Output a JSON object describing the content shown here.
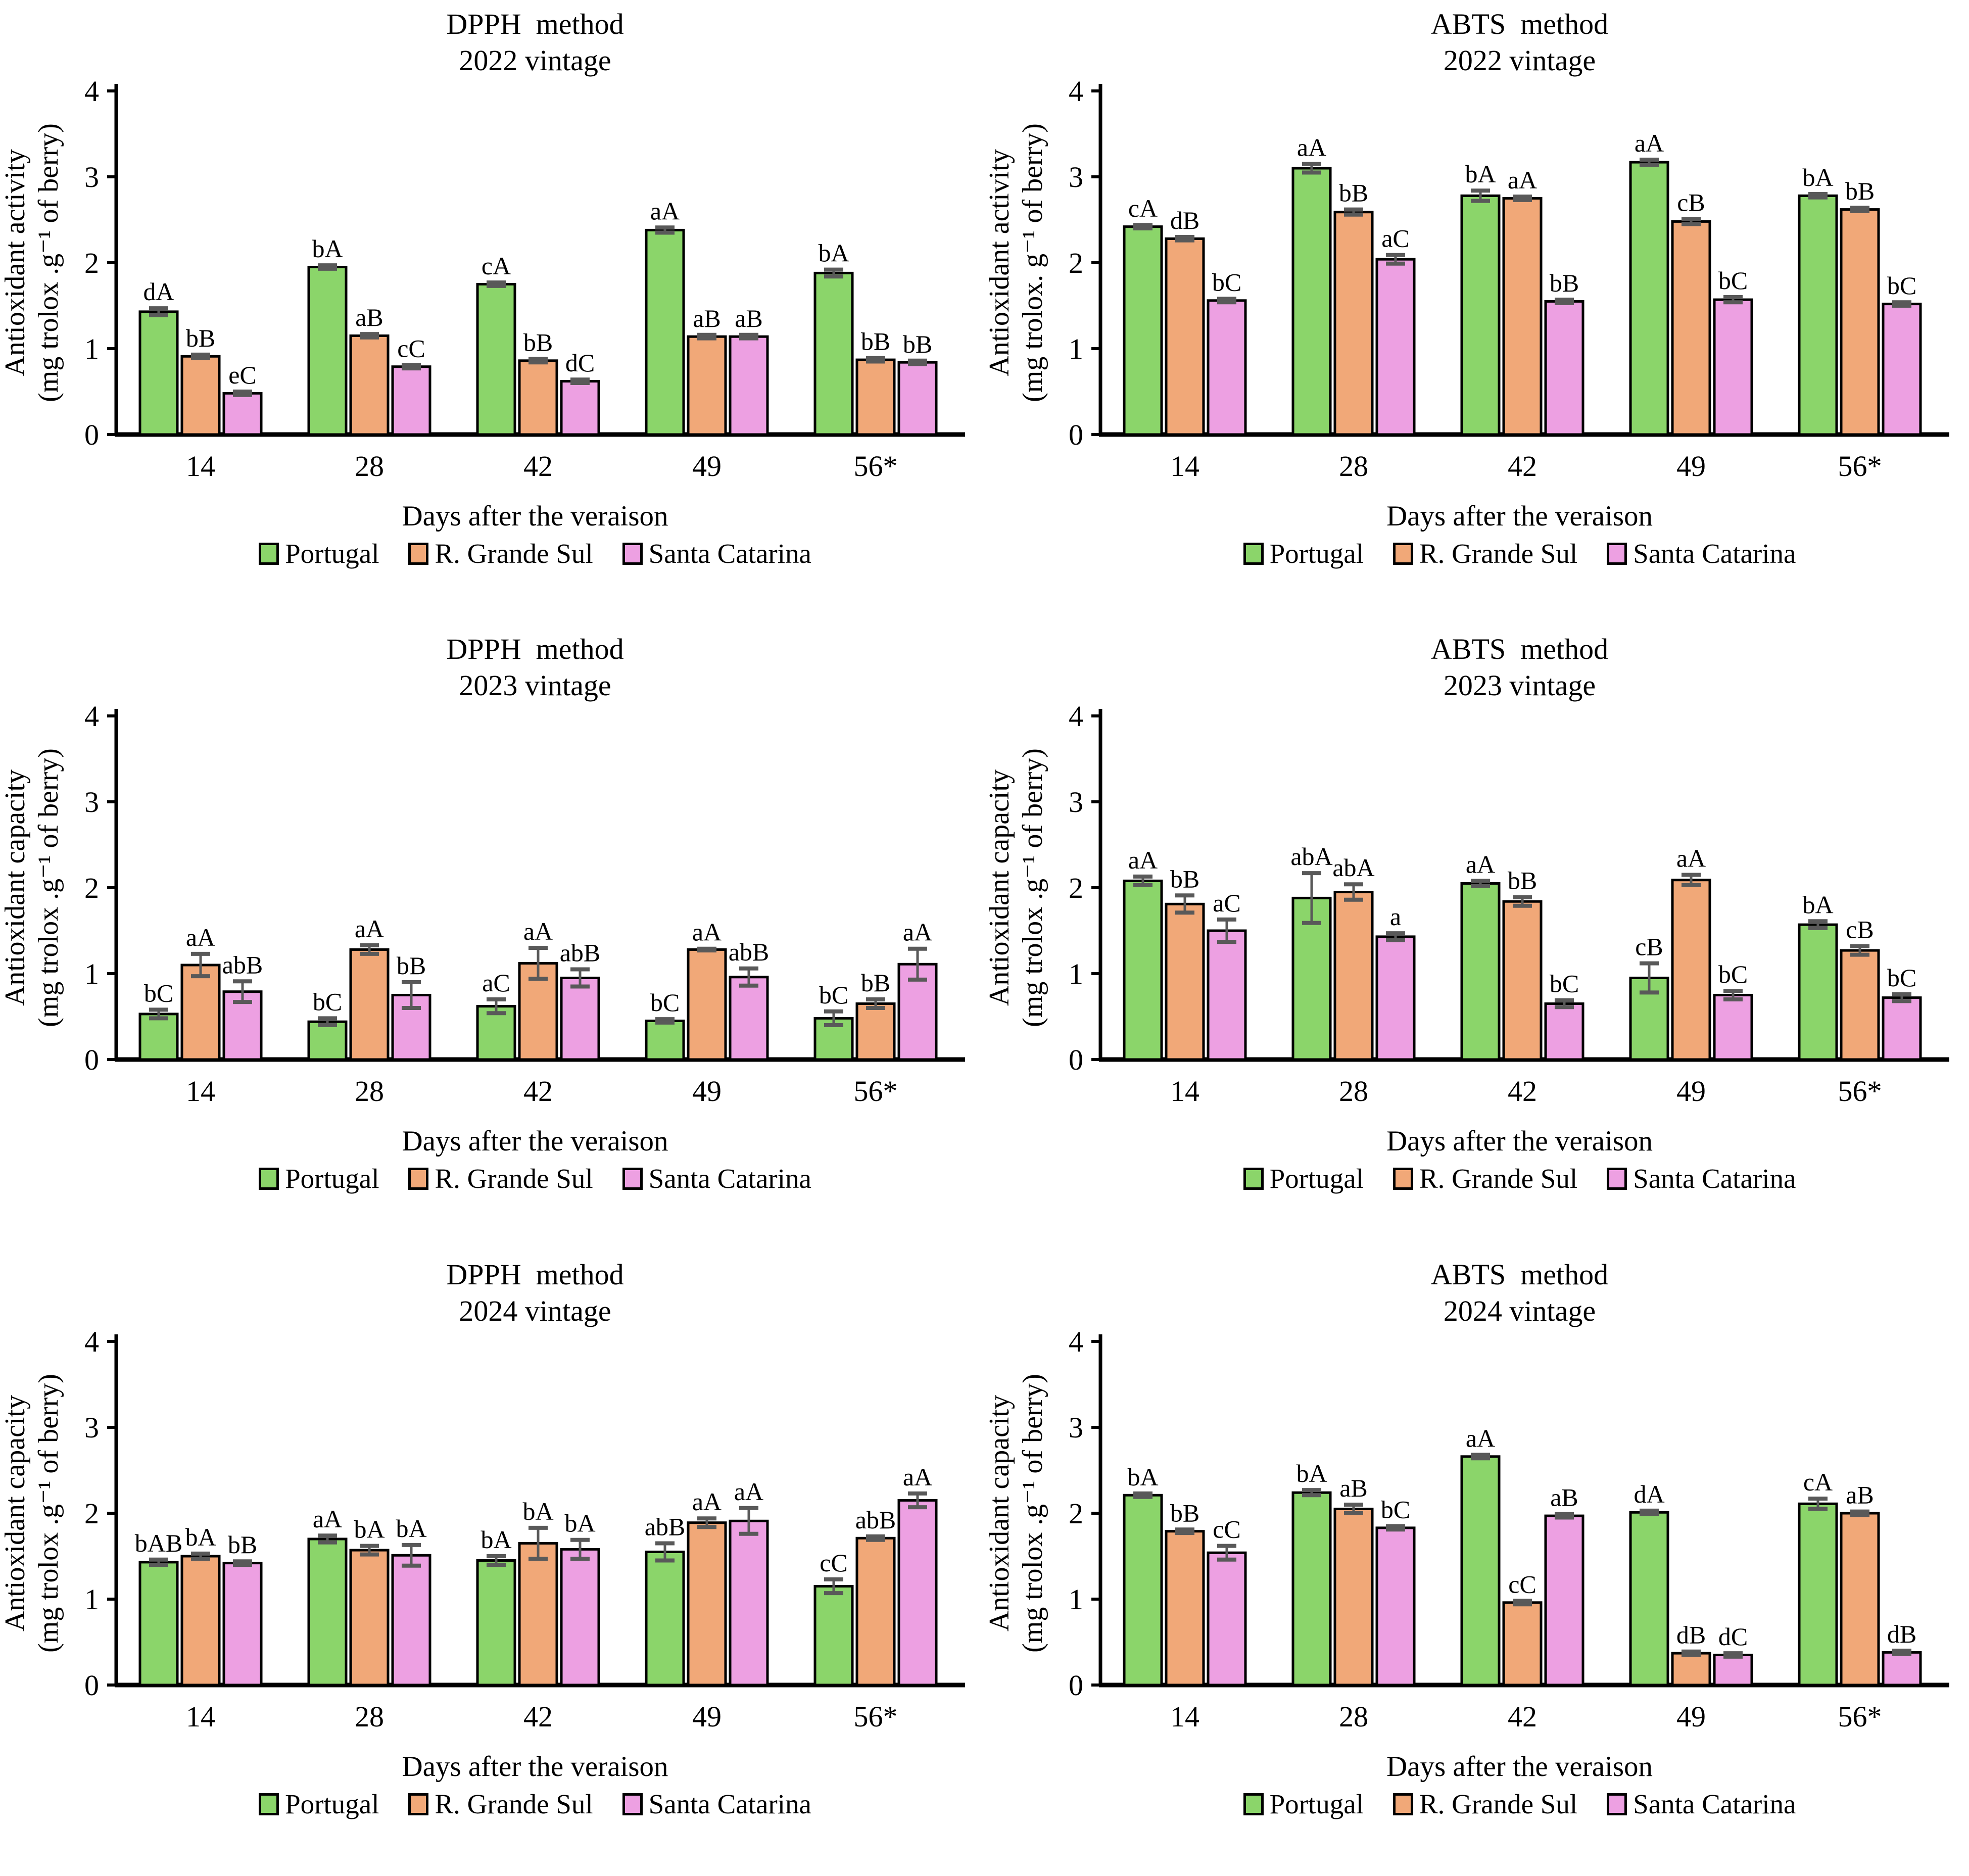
{
  "figure": {
    "background": "#ffffff",
    "x_axis_title": "Days after the veraison",
    "categories": [
      "14",
      "28",
      "42",
      "49",
      "56*"
    ],
    "legend": [
      {
        "label": "Portugal",
        "color": "#8bd56a"
      },
      {
        "label": "R. Grande Sul",
        "color": "#f1a878"
      },
      {
        "label": "Santa Catarina",
        "color": "#eda0e2"
      }
    ],
    "colors": {
      "axis": "#000000",
      "error_bar": "#595959",
      "bar_outline": "#000000"
    }
  },
  "chart_data": [
    {
      "type": "bar",
      "method_title": "DPPH  method",
      "vintage_subtitle": "2022 vintage",
      "ylabel_line1": "Antioxidant activity",
      "ylabel_line2": "(mg trolox .g⁻¹ of berry)",
      "xlabel": "Days after the veraison",
      "categories": [
        "14",
        "28",
        "42",
        "49",
        "56*"
      ],
      "ylim": [
        0,
        4
      ],
      "yticks": [
        0,
        1,
        2,
        3,
        4
      ],
      "series": [
        {
          "name": "Portugal",
          "color": "#8bd56a",
          "values": [
            1.43,
            1.95,
            1.75,
            2.38,
            1.88
          ],
          "errors": [
            0.04,
            0.02,
            0.02,
            0.03,
            0.04
          ],
          "labels": [
            "dA",
            "bA",
            "cA",
            "aA",
            "bA"
          ]
        },
        {
          "name": "R. Grande Sul",
          "color": "#f1a878",
          "values": [
            0.91,
            1.15,
            0.86,
            1.14,
            0.87
          ],
          "errors": [
            0.02,
            0.02,
            0.02,
            0.02,
            0.02
          ],
          "labels": [
            "bB",
            "aB",
            "bB",
            "aB",
            "bB"
          ]
        },
        {
          "name": "Santa Catarina",
          "color": "#eda0e2",
          "values": [
            0.48,
            0.79,
            0.62,
            1.14,
            0.84
          ],
          "errors": [
            0.02,
            0.02,
            0.02,
            0.02,
            0.02
          ],
          "labels": [
            "eC",
            "cC",
            "dC",
            "aB",
            "bB"
          ]
        }
      ]
    },
    {
      "type": "bar",
      "method_title": "ABTS  method",
      "vintage_subtitle": "2022 vintage",
      "ylabel_line1": "Antioxidant activity",
      "ylabel_line2": "(mg trolox. g⁻¹ of berry)",
      "xlabel": "Days after the veraison",
      "categories": [
        "14",
        "28",
        "42",
        "49",
        "56*"
      ],
      "ylim": [
        0,
        4
      ],
      "yticks": [
        0,
        1,
        2,
        3,
        4
      ],
      "series": [
        {
          "name": "Portugal",
          "color": "#8bd56a",
          "values": [
            2.42,
            3.1,
            2.78,
            3.17,
            2.78
          ],
          "errors": [
            0.02,
            0.05,
            0.06,
            0.03,
            0.02
          ],
          "labels": [
            "cA",
            "aA",
            "bA",
            "aA",
            "bA"
          ]
        },
        {
          "name": "R. Grande Sul",
          "color": "#f1a878",
          "values": [
            2.28,
            2.59,
            2.75,
            2.48,
            2.62
          ],
          "errors": [
            0.02,
            0.03,
            0.02,
            0.03,
            0.02
          ],
          "labels": [
            "dB",
            "bB",
            "aA",
            "cB",
            "bB"
          ]
        },
        {
          "name": "Santa Catarina",
          "color": "#eda0e2",
          "values": [
            1.56,
            2.04,
            1.55,
            1.57,
            1.52
          ],
          "errors": [
            0.02,
            0.05,
            0.02,
            0.03,
            0.02
          ],
          "labels": [
            "bC",
            "aC",
            "bB",
            "bC",
            "bC"
          ]
        }
      ]
    },
    {
      "type": "bar",
      "method_title": "DPPH  method",
      "vintage_subtitle": "2023 vintage",
      "ylabel_line1": "Antioxidant capacity",
      "ylabel_line2": "(mg trolox .g⁻¹ of berry)",
      "xlabel": "Days after the veraison",
      "categories": [
        "14",
        "28",
        "42",
        "49",
        "56*"
      ],
      "ylim": [
        0,
        4
      ],
      "yticks": [
        0,
        1,
        2,
        3,
        4
      ],
      "series": [
        {
          "name": "Portugal",
          "color": "#8bd56a",
          "values": [
            0.53,
            0.44,
            0.62,
            0.45,
            0.48
          ],
          "errors": [
            0.05,
            0.04,
            0.08,
            0.02,
            0.08
          ],
          "labels": [
            "bC",
            "bC",
            "aC",
            "bC",
            "bC"
          ]
        },
        {
          "name": "R. Grande Sul",
          "color": "#f1a878",
          "values": [
            1.1,
            1.28,
            1.12,
            1.28,
            0.65
          ],
          "errors": [
            0.13,
            0.05,
            0.18,
            0.01,
            0.05
          ],
          "labels": [
            "aA",
            "aA",
            "aA",
            "aA",
            "bB"
          ]
        },
        {
          "name": "Santa Catarina",
          "color": "#eda0e2",
          "values": [
            0.79,
            0.75,
            0.95,
            0.96,
            1.11
          ],
          "errors": [
            0.12,
            0.15,
            0.1,
            0.1,
            0.18
          ],
          "labels": [
            "abB",
            "bB",
            "abB",
            "abB",
            "aA"
          ]
        }
      ]
    },
    {
      "type": "bar",
      "method_title": "ABTS  method",
      "vintage_subtitle": "2023 vintage",
      "ylabel_line1": "Antioxidant capacity",
      "ylabel_line2": "(mg trolox .g⁻¹ of berry)",
      "xlabel": "Days after the veraison",
      "categories": [
        "14",
        "28",
        "42",
        "49",
        "56*"
      ],
      "ylim": [
        0,
        4
      ],
      "yticks": [
        0,
        1,
        2,
        3,
        4
      ],
      "series": [
        {
          "name": "Portugal",
          "color": "#8bd56a",
          "values": [
            2.08,
            1.88,
            2.05,
            0.95,
            1.57
          ],
          "errors": [
            0.05,
            0.29,
            0.03,
            0.17,
            0.04
          ],
          "labels": [
            "aA",
            "abA",
            "aA",
            "cB",
            "bA"
          ]
        },
        {
          "name": "R. Grande Sul",
          "color": "#f1a878",
          "values": [
            1.81,
            1.95,
            1.84,
            2.09,
            1.27
          ],
          "errors": [
            0.1,
            0.09,
            0.05,
            0.06,
            0.05
          ],
          "labels": [
            "bB",
            "abA",
            "bB",
            "aA",
            "cB"
          ]
        },
        {
          "name": "Santa Catarina",
          "color": "#eda0e2",
          "values": [
            1.5,
            1.43,
            0.65,
            0.75,
            0.72
          ],
          "errors": [
            0.13,
            0.04,
            0.04,
            0.05,
            0.04
          ],
          "labels": [
            "aC",
            "a",
            "bC",
            "bC",
            "bC"
          ]
        }
      ]
    },
    {
      "type": "bar",
      "method_title": "DPPH  method",
      "vintage_subtitle": "2024 vintage",
      "ylabel_line1": "Antioxidant capacity",
      "ylabel_line2": "(mg trolox .g⁻¹ of berry)",
      "xlabel": "Days after the veraison",
      "categories": [
        "14",
        "28",
        "42",
        "49",
        "56*"
      ],
      "ylim": [
        0,
        4
      ],
      "yticks": [
        0,
        1,
        2,
        3,
        4
      ],
      "series": [
        {
          "name": "Portugal",
          "color": "#8bd56a",
          "values": [
            1.43,
            1.7,
            1.45,
            1.55,
            1.15
          ],
          "errors": [
            0.03,
            0.04,
            0.05,
            0.1,
            0.08
          ],
          "labels": [
            "bAB",
            "aA",
            "bA",
            "abB",
            "cC"
          ]
        },
        {
          "name": "R. Grande Sul",
          "color": "#f1a878",
          "values": [
            1.5,
            1.57,
            1.65,
            1.89,
            1.71
          ],
          "errors": [
            0.03,
            0.05,
            0.18,
            0.05,
            0.02
          ],
          "labels": [
            "bA",
            "bA",
            "bA",
            "aA",
            "abB"
          ]
        },
        {
          "name": "Santa Catarina",
          "color": "#eda0e2",
          "values": [
            1.42,
            1.51,
            1.58,
            1.91,
            2.15
          ],
          "errors": [
            0.02,
            0.12,
            0.11,
            0.15,
            0.08
          ],
          "labels": [
            "bB",
            "bA",
            "bA",
            "aA",
            "aA"
          ]
        }
      ]
    },
    {
      "type": "bar",
      "method_title": "ABTS  method",
      "vintage_subtitle": "2024 vintage",
      "ylabel_line1": "Antioxidant capacity",
      "ylabel_line2": "(mg trolox .g⁻¹  of berry)",
      "xlabel": "Days after the veraison",
      "categories": [
        "14",
        "28",
        "42",
        "49",
        "56*"
      ],
      "ylim": [
        0,
        4
      ],
      "yticks": [
        0,
        1,
        2,
        3,
        4
      ],
      "series": [
        {
          "name": "Portugal",
          "color": "#8bd56a",
          "values": [
            2.21,
            2.24,
            2.66,
            2.01,
            2.11
          ],
          "errors": [
            0.02,
            0.03,
            0.02,
            0.02,
            0.06
          ],
          "labels": [
            "bA",
            "bA",
            "aA",
            "dA",
            "cA"
          ]
        },
        {
          "name": "R. Grande Sul",
          "color": "#f1a878",
          "values": [
            1.79,
            2.05,
            0.96,
            0.37,
            2.0
          ],
          "errors": [
            0.02,
            0.05,
            0.02,
            0.02,
            0.02
          ],
          "labels": [
            "bB",
            "aB",
            "cC",
            "dB",
            "aB"
          ]
        },
        {
          "name": "Santa Catarina",
          "color": "#eda0e2",
          "values": [
            1.54,
            1.83,
            1.97,
            0.35,
            0.38
          ],
          "errors": [
            0.08,
            0.02,
            0.02,
            0.02,
            0.02
          ],
          "labels": [
            "cC",
            "bC",
            "aB",
            "dC",
            "dB"
          ]
        }
      ]
    }
  ]
}
